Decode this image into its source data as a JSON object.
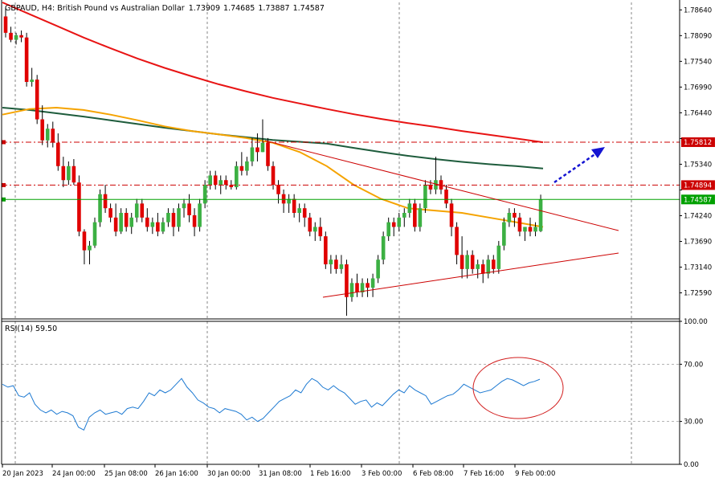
{
  "header": {
    "symbol": "GBPAUD",
    "timeframe": "H4",
    "description": "British Pound vs Australian Dollar",
    "open": "1.73909",
    "high": "1.74685",
    "low": "1.73887",
    "close": "1.74587"
  },
  "rsi_label": "RSI(14) 59.50",
  "colors": {
    "bull": "#3cb043",
    "bear": "#e00000",
    "wick": "#000000",
    "ma_red": "#e81414",
    "ma_orange": "#f5a300",
    "ma_green": "#1e5c3c",
    "level_red": "#cc0000",
    "price_line": "#00a000",
    "trend_line": "#cc0000",
    "arrow": "#1414d2",
    "rsi_line": "#1e7ad2",
    "ellipse": "#d21e1e",
    "grid": "#555555"
  },
  "chart_data": [
    {
      "type": "candlestick",
      "panel": "price",
      "y_ticks": [
        "1.78640",
        "1.78090",
        "1.77540",
        "1.76990",
        "1.76440",
        "1.75890",
        "1.75340",
        "1.74790",
        "1.74240",
        "1.73690",
        "1.73140",
        "1.72590"
      ],
      "ylim": [
        1.7205,
        1.788
      ],
      "x_tick_labels": [
        "20 Jan 2023",
        "24 Jan 00:00",
        "25 Jan 08:00",
        "26 Jan 16:00",
        "30 Jan 00:00",
        "31 Jan 08:00",
        "1 Feb 16:00",
        "3 Feb 00:00",
        "6 Feb 08:00",
        "7 Feb 16:00",
        "9 Feb 00:00"
      ],
      "price_tags": [
        {
          "value": "1.75812",
          "price": 1.75812,
          "color": "#cc0000"
        },
        {
          "value": "1.74894",
          "price": 1.74894,
          "color": "#cc0000"
        },
        {
          "value": "1.74587",
          "price": 1.74587,
          "color": "#00a000"
        }
      ],
      "horizontal_levels": [
        1.75812,
        1.74894
      ],
      "current_price": 1.74587,
      "candles": [
        [
          1.785,
          1.787,
          1.7805,
          1.7815
        ],
        [
          1.7815,
          1.7828,
          1.7795,
          1.78
        ],
        [
          1.78,
          1.7815,
          1.779,
          1.781
        ],
        [
          1.781,
          1.782,
          1.7795,
          1.7805
        ],
        [
          1.7805,
          1.7815,
          1.77,
          1.771
        ],
        [
          1.771,
          1.774,
          1.77,
          1.7715
        ],
        [
          1.7715,
          1.7725,
          1.762,
          1.763
        ],
        [
          1.763,
          1.766,
          1.7575,
          1.7585
        ],
        [
          1.7585,
          1.762,
          1.757,
          1.761
        ],
        [
          1.761,
          1.7625,
          1.757,
          1.758
        ],
        [
          1.758,
          1.76,
          1.752,
          1.753
        ],
        [
          1.753,
          1.755,
          1.7485,
          1.75
        ],
        [
          1.75,
          1.754,
          1.749,
          1.753
        ],
        [
          1.753,
          1.7545,
          1.749,
          1.7495
        ],
        [
          1.7495,
          1.751,
          1.738,
          1.739
        ],
        [
          1.739,
          1.7395,
          1.732,
          1.735
        ],
        [
          1.735,
          1.737,
          1.732,
          1.736
        ],
        [
          1.736,
          1.742,
          1.7355,
          1.741
        ],
        [
          1.741,
          1.748,
          1.74,
          1.747
        ],
        [
          1.747,
          1.749,
          1.743,
          1.744
        ],
        [
          1.744,
          1.745,
          1.741,
          1.742
        ],
        [
          1.742,
          1.745,
          1.738,
          1.739
        ],
        [
          1.739,
          1.744,
          1.7385,
          1.743
        ],
        [
          1.743,
          1.744,
          1.739,
          1.74
        ],
        [
          1.74,
          1.743,
          1.7385,
          1.742
        ],
        [
          1.742,
          1.746,
          1.741,
          1.745
        ],
        [
          1.745,
          1.746,
          1.741,
          1.742
        ],
        [
          1.742,
          1.744,
          1.739,
          1.74
        ],
        [
          1.74,
          1.742,
          1.7385,
          1.741
        ],
        [
          1.741,
          1.743,
          1.738,
          1.739
        ],
        [
          1.739,
          1.742,
          1.7385,
          1.741
        ],
        [
          1.741,
          1.744,
          1.74,
          1.743
        ],
        [
          1.743,
          1.744,
          1.738,
          1.74
        ],
        [
          1.74,
          1.745,
          1.739,
          1.744
        ],
        [
          1.744,
          1.746,
          1.742,
          1.745
        ],
        [
          1.745,
          1.747,
          1.741,
          1.7425
        ],
        [
          1.7425,
          1.744,
          1.738,
          1.74
        ],
        [
          1.74,
          1.746,
          1.739,
          1.745
        ],
        [
          1.745,
          1.75,
          1.744,
          1.749
        ],
        [
          1.749,
          1.752,
          1.748,
          1.751
        ],
        [
          1.751,
          1.752,
          1.748,
          1.749
        ],
        [
          1.749,
          1.751,
          1.747,
          1.75
        ],
        [
          1.75,
          1.751,
          1.748,
          1.749
        ],
        [
          1.749,
          1.75,
          1.748,
          1.7485
        ],
        [
          1.7485,
          1.754,
          1.748,
          1.753
        ],
        [
          1.753,
          1.756,
          1.751,
          1.752
        ],
        [
          1.752,
          1.755,
          1.751,
          1.754
        ],
        [
          1.754,
          1.759,
          1.753,
          1.757
        ],
        [
          1.757,
          1.76,
          1.754,
          1.756
        ],
        [
          1.756,
          1.763,
          1.756,
          1.758
        ],
        [
          1.758,
          1.759,
          1.752,
          1.753
        ],
        [
          1.753,
          1.754,
          1.748,
          1.749
        ],
        [
          1.749,
          1.75,
          1.745,
          1.747
        ],
        [
          1.747,
          1.748,
          1.743,
          1.745
        ],
        [
          1.745,
          1.747,
          1.743,
          1.746
        ],
        [
          1.746,
          1.747,
          1.742,
          1.743
        ],
        [
          1.743,
          1.745,
          1.741,
          1.744
        ],
        [
          1.744,
          1.745,
          1.74,
          1.742
        ],
        [
          1.742,
          1.743,
          1.738,
          1.739
        ],
        [
          1.739,
          1.741,
          1.737,
          1.74
        ],
        [
          1.74,
          1.742,
          1.737,
          1.738
        ],
        [
          1.738,
          1.739,
          1.731,
          1.732
        ],
        [
          1.732,
          1.734,
          1.73,
          1.733
        ],
        [
          1.733,
          1.734,
          1.73,
          1.731
        ],
        [
          1.731,
          1.734,
          1.73,
          1.732
        ],
        [
          1.732,
          1.733,
          1.721,
          1.725
        ],
        [
          1.725,
          1.729,
          1.724,
          1.728
        ],
        [
          1.728,
          1.73,
          1.725,
          1.726
        ],
        [
          1.726,
          1.729,
          1.725,
          1.728
        ],
        [
          1.728,
          1.729,
          1.725,
          1.727
        ],
        [
          1.727,
          1.73,
          1.725,
          1.729
        ],
        [
          1.729,
          1.734,
          1.728,
          1.733
        ],
        [
          1.733,
          1.739,
          1.732,
          1.738
        ],
        [
          1.738,
          1.742,
          1.737,
          1.741
        ],
        [
          1.741,
          1.742,
          1.738,
          1.74
        ],
        [
          1.74,
          1.743,
          1.739,
          1.742
        ],
        [
          1.742,
          1.744,
          1.74,
          1.743
        ],
        [
          1.743,
          1.746,
          1.742,
          1.745
        ],
        [
          1.745,
          1.746,
          1.739,
          1.74
        ],
        [
          1.74,
          1.745,
          1.739,
          1.744
        ],
        [
          1.744,
          1.75,
          1.743,
          1.749
        ],
        [
          1.749,
          1.75,
          1.747,
          1.748
        ],
        [
          1.748,
          1.755,
          1.747,
          1.75
        ],
        [
          1.75,
          1.751,
          1.747,
          1.748
        ],
        [
          1.748,
          1.749,
          1.744,
          1.745
        ],
        [
          1.745,
          1.746,
          1.738,
          1.74
        ],
        [
          1.74,
          1.741,
          1.732,
          1.734
        ],
        [
          1.734,
          1.738,
          1.729,
          1.731
        ],
        [
          1.731,
          1.735,
          1.729,
          1.734
        ],
        [
          1.734,
          1.735,
          1.73,
          1.731
        ],
        [
          1.731,
          1.733,
          1.729,
          1.732
        ],
        [
          1.732,
          1.733,
          1.728,
          1.73
        ],
        [
          1.73,
          1.734,
          1.729,
          1.733
        ],
        [
          1.733,
          1.734,
          1.73,
          1.731
        ],
        [
          1.731,
          1.737,
          1.73,
          1.736
        ],
        [
          1.736,
          1.742,
          1.735,
          1.741
        ],
        [
          1.741,
          1.744,
          1.74,
          1.743
        ],
        [
          1.743,
          1.744,
          1.74,
          1.742
        ],
        [
          1.742,
          1.743,
          1.738,
          1.739
        ],
        [
          1.739,
          1.74,
          1.737,
          1.74
        ],
        [
          1.74,
          1.742,
          1.738,
          1.739
        ],
        [
          1.739,
          1.741,
          1.738,
          1.74
        ],
        [
          1.7391,
          1.7469,
          1.7389,
          1.7459
        ]
      ],
      "ma_red": [
        1.788,
        1.7855,
        1.783,
        1.7805,
        1.7782,
        1.776,
        1.774,
        1.7722,
        1.7705,
        1.769,
        1.7676,
        1.7664,
        1.7652,
        1.7641,
        1.7631,
        1.7622,
        1.7614,
        1.7605,
        1.7597,
        1.7589,
        1.7581
      ],
      "ma_green": [
        1.7655,
        1.765,
        1.7643,
        1.7636,
        1.7628,
        1.762,
        1.7612,
        1.7605,
        1.7598,
        1.7592,
        1.7586,
        1.7582,
        1.7578,
        1.7569,
        1.756,
        1.7552,
        1.7545,
        1.7539,
        1.7534,
        1.753,
        1.7525
      ],
      "ma_orange": [
        1.764,
        1.7652,
        1.7655,
        1.765,
        1.764,
        1.7628,
        1.7615,
        1.7605,
        1.7598,
        1.759,
        1.758,
        1.756,
        1.753,
        1.749,
        1.746,
        1.744,
        1.7435,
        1.743,
        1.742,
        1.741,
        1.74
      ]
    },
    {
      "type": "line",
      "panel": "indicator",
      "series": [
        {
          "name": "RSI(14)",
          "values": [
            56,
            54,
            55,
            48,
            47,
            50,
            42,
            38,
            36,
            38,
            35,
            37,
            36,
            34,
            26,
            24,
            33,
            36,
            38,
            35,
            36,
            37,
            35,
            39,
            40,
            39,
            44,
            50,
            48,
            52,
            50,
            52,
            56,
            60,
            54,
            50,
            45,
            43,
            40,
            39,
            36,
            39,
            38,
            37,
            35,
            31,
            33,
            30,
            32,
            36,
            40,
            44,
            46,
            48,
            52,
            50,
            56,
            60,
            58,
            54,
            52,
            55,
            52,
            50,
            46,
            42,
            44,
            45,
            40,
            43,
            41,
            45,
            49,
            52,
            50,
            55,
            52,
            50,
            48,
            42,
            44,
            46,
            48,
            49,
            52,
            56,
            54,
            52,
            50,
            51,
            52,
            55,
            58,
            60,
            59,
            57,
            55,
            57,
            58,
            59.5
          ]
        }
      ],
      "y_ticks": [
        "100.00",
        "70.00",
        "30.00",
        "0.00"
      ],
      "ylim": [
        0,
        100
      ],
      "levels": [
        70,
        30
      ]
    }
  ]
}
